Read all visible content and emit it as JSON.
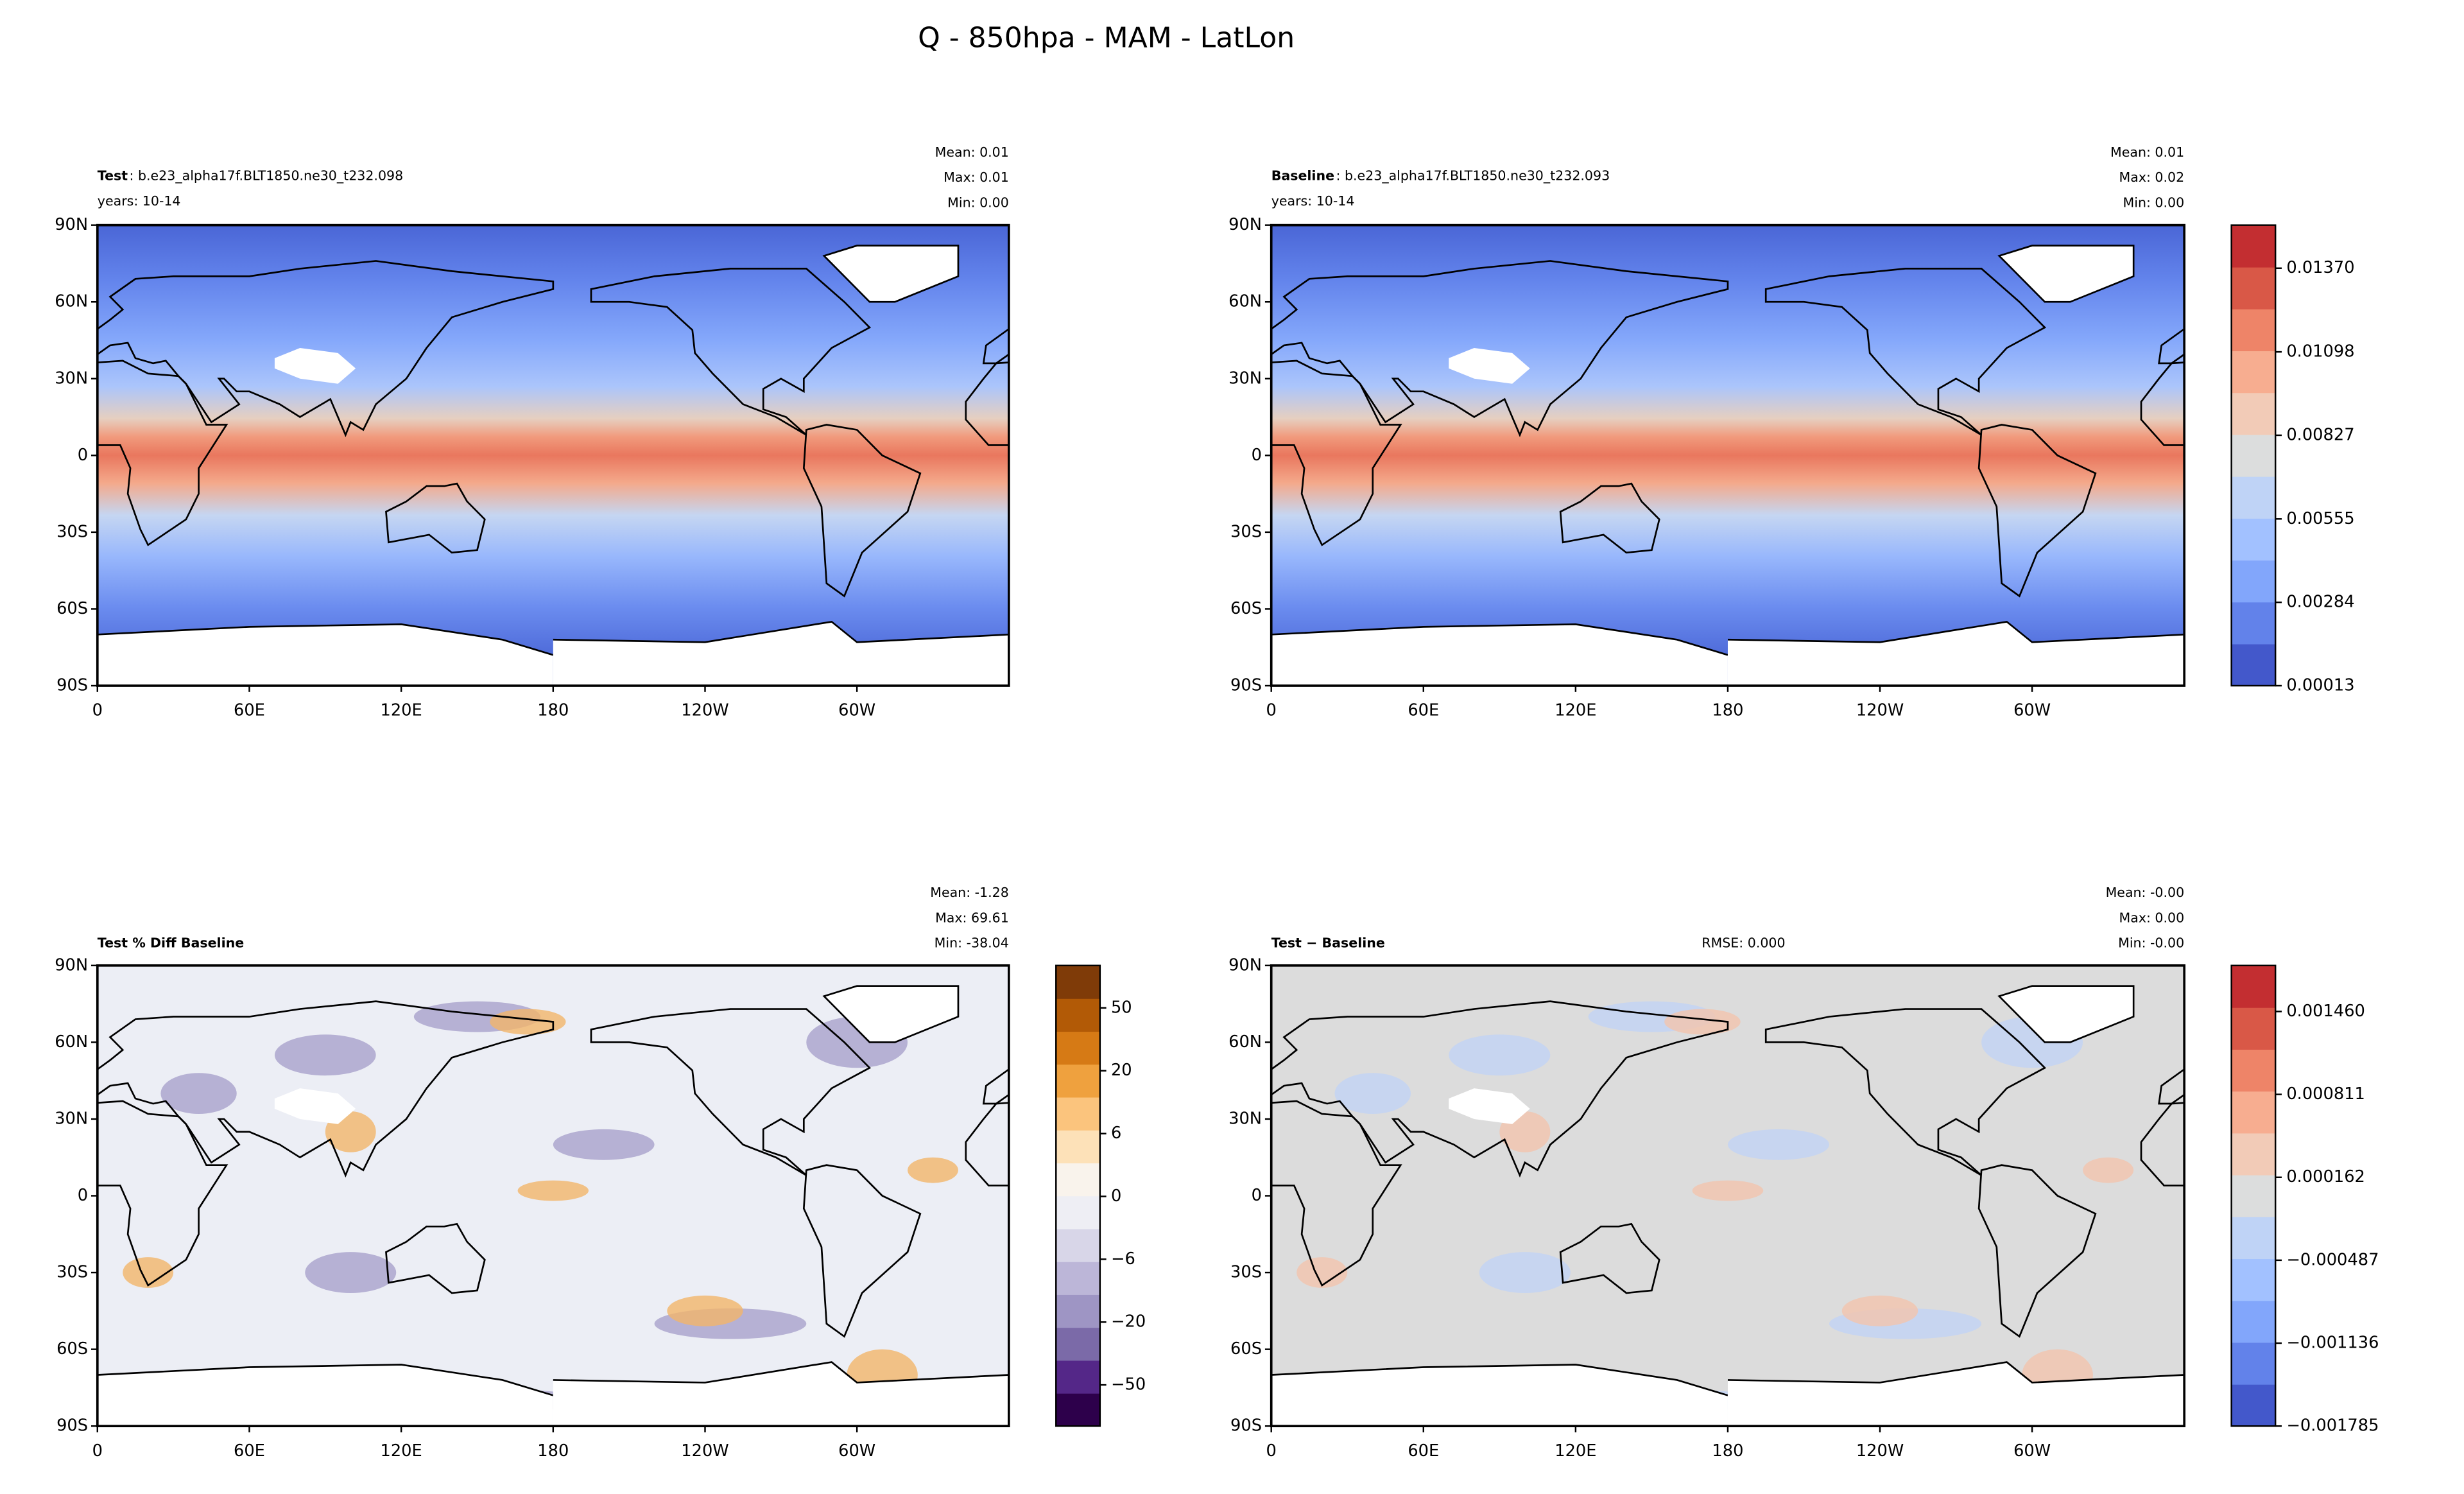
{
  "title": "Q - 850hpa - MAM - LatLon",
  "panels": [
    {
      "name_bold": "Test",
      "name_rest": ": b.e23_alpha17f.BLT1850.ne30_t232.098",
      "years": "years: 10-14",
      "stats": [
        "Mean:  0.01",
        "Max:  0.01",
        "Min:  0.00"
      ]
    },
    {
      "name_bold": "Baseline",
      "name_rest": ": b.e23_alpha17f.BLT1850.ne30_t232.093",
      "years": "years: 10-14",
      "stats": [
        "Mean:  0.01",
        "Max:  0.02",
        "Min:  0.00"
      ]
    },
    {
      "name_bold": "Test % Diff Baseline",
      "stats": [
        "Mean: -1.28",
        "Max: 69.61",
        "Min: -38.04"
      ]
    },
    {
      "name_bold": "Test − Baseline",
      "rmse": "RMSE: 0.000",
      "stats": [
        "Mean: -0.00",
        "Max:  0.00",
        "Min: -0.00"
      ]
    }
  ],
  "map_axes": {
    "xlim": [
      0,
      360
    ],
    "ylim": [
      -90,
      90
    ],
    "xticks": [
      0,
      {
        "value": 60,
        "label": "60E"
      },
      {
        "value": 120,
        "label": "120E"
      },
      180,
      {
        "value": 240,
        "label": "120W"
      },
      {
        "value": 300,
        "label": "60W"
      }
    ],
    "yticks": [
      {
        "value": 90,
        "label": "90N"
      },
      {
        "value": 60,
        "label": "60N"
      },
      {
        "value": 30,
        "label": "30N"
      },
      0,
      {
        "value": -30,
        "label": "30S"
      },
      {
        "value": -60,
        "label": "60S"
      },
      {
        "value": -90,
        "label": "90S"
      }
    ]
  },
  "colorbars": [
    {
      "lim": [
        0.00013,
        0.0151
      ],
      "ticks": [
        0.00013,
        {
          "value": 0.00284,
          "label": "0.00284"
        },
        0.00555,
        0.00827,
        0.01098,
        {
          "value": 0.0137,
          "label": "0.01370"
        }
      ]
    },
    {
      "ticks": [
        50,
        20,
        6,
        0,
        {
          "value": -6,
          "label": "−6"
        },
        {
          "value": -20,
          "label": "−20"
        },
        {
          "value": -50,
          "label": "−50"
        }
      ]
    },
    {
      "lim": [
        -0.001785,
        0.00182
      ],
      "ticks": [
        {
          "value": 0.00146,
          "label": "0.001460"
        },
        0.000811,
        0.000162,
        {
          "value": -0.000487,
          "label": "−0.000487"
        },
        {
          "value": -0.001136,
          "label": "−0.001136"
        },
        {
          "value": -0.001785,
          "label": "−0.001785"
        }
      ]
    }
  ]
}
